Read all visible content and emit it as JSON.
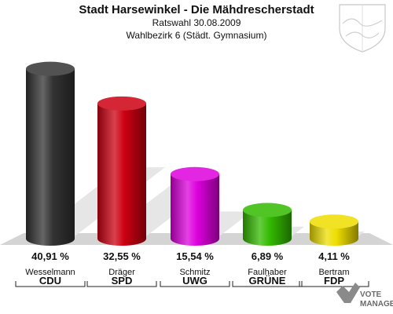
{
  "header": {
    "title": "Stadt Harsewinkel - Die Mähdrescherstadt",
    "subtitle": "Ratswahl 30.08.2009",
    "district": "Wahlbezirk 6 (Städt. Gymnasium)"
  },
  "chart_data": {
    "type": "bar",
    "categories": [
      "CDU",
      "SPD",
      "UWG",
      "GRÜNE",
      "FDP"
    ],
    "candidates": [
      "Wesselmann",
      "Dräger",
      "Schmitz",
      "Faulhaber",
      "Bertram"
    ],
    "values": [
      40.91,
      32.55,
      15.54,
      6.89,
      4.11
    ],
    "value_labels": [
      "40,91 %",
      "32,55 %",
      "15,54 %",
      "6,89 %",
      "4,11 %"
    ],
    "colors": [
      "#333333",
      "#cc0011",
      "#dd00dd",
      "#33bb00",
      "#eedd00"
    ],
    "ylim": [
      0,
      45
    ],
    "grid": false,
    "legend": "none"
  },
  "watermark": {
    "line1": "VOTE",
    "line2": "MANAGER"
  }
}
